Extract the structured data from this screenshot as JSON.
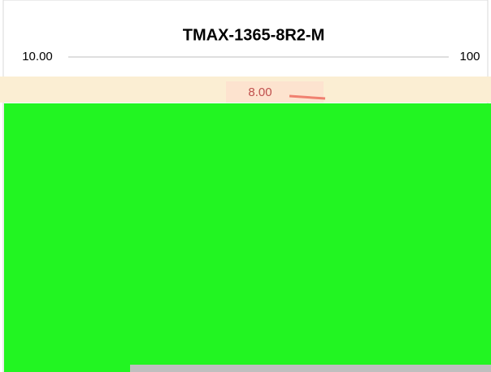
{
  "title": "TMAX-1365-8R2-M",
  "axes": {
    "left_top_label": "10.00",
    "right_top_label": "100"
  },
  "annotation": {
    "label": "8.00"
  }
}
